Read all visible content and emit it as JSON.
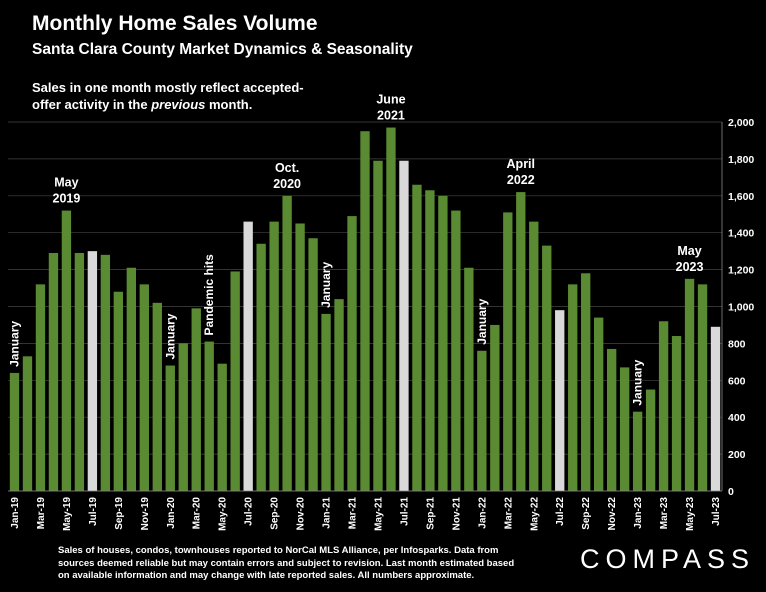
{
  "header": {
    "title": "Monthly Home Sales Volume",
    "subtitle": "Santa Clara County Market Dynamics & Seasonality",
    "note_before": "Sales in one month mostly reflect accepted-offer activity in the ",
    "note_emph": "previous",
    "note_after": " month."
  },
  "footer": {
    "text": "Sales of houses, condos, townhouses reported to NorCal MLS Alliance, per Infosparks. Data from sources deemed reliable but may contain errors and subject to revision. Last month estimated based on available information and may change with late reported sales. All numbers approximate.",
    "logo": "COMPASS"
  },
  "chart_data": {
    "type": "bar",
    "title": "Monthly Home Sales Volume",
    "subtitle": "Santa Clara County Market Dynamics & Seasonality",
    "categories": [
      "Jan-19",
      "Feb-19",
      "Mar-19",
      "Apr-19",
      "May-19",
      "Jun-19",
      "Jul-19",
      "Aug-19",
      "Sep-19",
      "Oct-19",
      "Nov-19",
      "Dec-19",
      "Jan-20",
      "Feb-20",
      "Mar-20",
      "Apr-20",
      "May-20",
      "Jun-20",
      "Jul-20",
      "Aug-20",
      "Sep-20",
      "Oct-20",
      "Nov-20",
      "Dec-20",
      "Jan-21",
      "Feb-21",
      "Mar-21",
      "Apr-21",
      "May-21",
      "Jun-21",
      "Jul-21",
      "Aug-21",
      "Sep-21",
      "Oct-21",
      "Nov-21",
      "Dec-21",
      "Jan-22",
      "Feb-22",
      "Mar-22",
      "Apr-22",
      "May-22",
      "Jun-22",
      "Jul-22",
      "Aug-22",
      "Sep-22",
      "Oct-22",
      "Nov-22",
      "Dec-22",
      "Jan-23",
      "Feb-23",
      "Mar-23",
      "Apr-23",
      "May-23",
      "Jun-23",
      "Jul-23"
    ],
    "tick_labels": [
      "Jan-19",
      "",
      "Mar-19",
      "",
      "May-19",
      "",
      "Jul-19",
      "",
      "Sep-19",
      "",
      "Nov-19",
      "",
      "Jan-20",
      "",
      "Mar-20",
      "",
      "May-20",
      "",
      "Jul-20",
      "",
      "Sep-20",
      "",
      "Nov-20",
      "",
      "Jan-21",
      "",
      "Mar-21",
      "",
      "May-21",
      "",
      "Jul-21",
      "",
      "Sep-21",
      "",
      "Nov-21",
      "",
      "Jan-22",
      "",
      "Mar-22",
      "",
      "May-22",
      "",
      "Jul-22",
      "",
      "Sep-22",
      "",
      "Nov-22",
      "",
      "Jan-23",
      "",
      "Mar-23",
      "",
      "May-23",
      "",
      "Jul-23"
    ],
    "values": [
      640,
      730,
      1120,
      1290,
      1520,
      1290,
      1300,
      1280,
      1080,
      1210,
      1120,
      1020,
      680,
      800,
      990,
      810,
      690,
      1190,
      1460,
      1340,
      1460,
      1600,
      1450,
      1370,
      960,
      1040,
      1490,
      1950,
      1790,
      1970,
      1790,
      1660,
      1630,
      1600,
      1520,
      1210,
      760,
      900,
      1510,
      1620,
      1460,
      1330,
      980,
      1120,
      1180,
      940,
      770,
      670,
      430,
      550,
      920,
      840,
      1150,
      1120,
      890
    ],
    "highlight_indices": [
      6,
      18,
      30,
      42,
      54
    ],
    "colors": {
      "bar": "#5a8a32",
      "highlight": "#d9d9d9",
      "background": "#000000",
      "grid": "#444444"
    },
    "ylim": [
      0,
      2000
    ],
    "yticks": [
      "0",
      "200",
      "400",
      "600",
      "800",
      "1,000",
      "1,200",
      "1,400",
      "1,600",
      "1,800",
      "2,000"
    ],
    "y_axis_side": "right",
    "grid": true,
    "annotations": [
      {
        "index": 0,
        "text": "January",
        "rotated": true
      },
      {
        "index": 4,
        "text": "May\n2019",
        "rotated": false
      },
      {
        "index": 12,
        "text": "January",
        "rotated": true
      },
      {
        "index": 15,
        "text": "Pandemic hits",
        "rotated": true
      },
      {
        "index": 21,
        "text": "Oct.\n2020",
        "rotated": false
      },
      {
        "index": 24,
        "text": "January",
        "rotated": true
      },
      {
        "index": 29,
        "text": "June\n2021",
        "rotated": false
      },
      {
        "index": 36,
        "text": "January",
        "rotated": true
      },
      {
        "index": 39,
        "text": "April\n2022",
        "rotated": false
      },
      {
        "index": 48,
        "text": "January",
        "rotated": true
      },
      {
        "index": 52,
        "text": "May\n2023",
        "rotated": false
      }
    ]
  }
}
